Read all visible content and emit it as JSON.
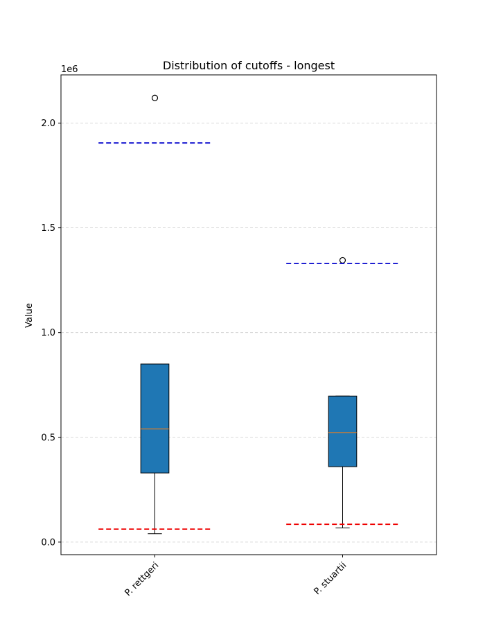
{
  "chart_data": {
    "type": "box",
    "title": "Distribution of cutoffs - longest",
    "xlabel": "",
    "ylabel": "Value",
    "offset_label": "1e6",
    "ylim": [
      -60000,
      2230000
    ],
    "yticks": [
      0,
      500000,
      1000000,
      1500000,
      2000000
    ],
    "ytick_labels": [
      "0.0",
      "0.5",
      "1.0",
      "1.5",
      "2.0"
    ],
    "grid": "y",
    "categories": [
      "P. rettgeri",
      "P. stuartii"
    ],
    "boxes": [
      {
        "label": "P. rettgeri",
        "whisker_low": 40000,
        "q1": 330000,
        "median": 540000,
        "q3": 850000,
        "whisker_high": 850000,
        "outliers": [
          2120000
        ],
        "upper_cutoff": 1905000,
        "lower_cutoff": 62000
      },
      {
        "label": "P. stuartii",
        "whisker_low": 68000,
        "q1": 360000,
        "median": 523000,
        "q3": 697000,
        "whisker_high": 697000,
        "outliers": [
          1345000
        ],
        "upper_cutoff": 1330000,
        "lower_cutoff": 85000
      }
    ],
    "colors": {
      "box_fill": "#1f77b4",
      "median": "#ff7f0e",
      "upper_cutoff": "#0000cc",
      "lower_cutoff": "#ee0000",
      "grid": "#cccccc"
    }
  }
}
